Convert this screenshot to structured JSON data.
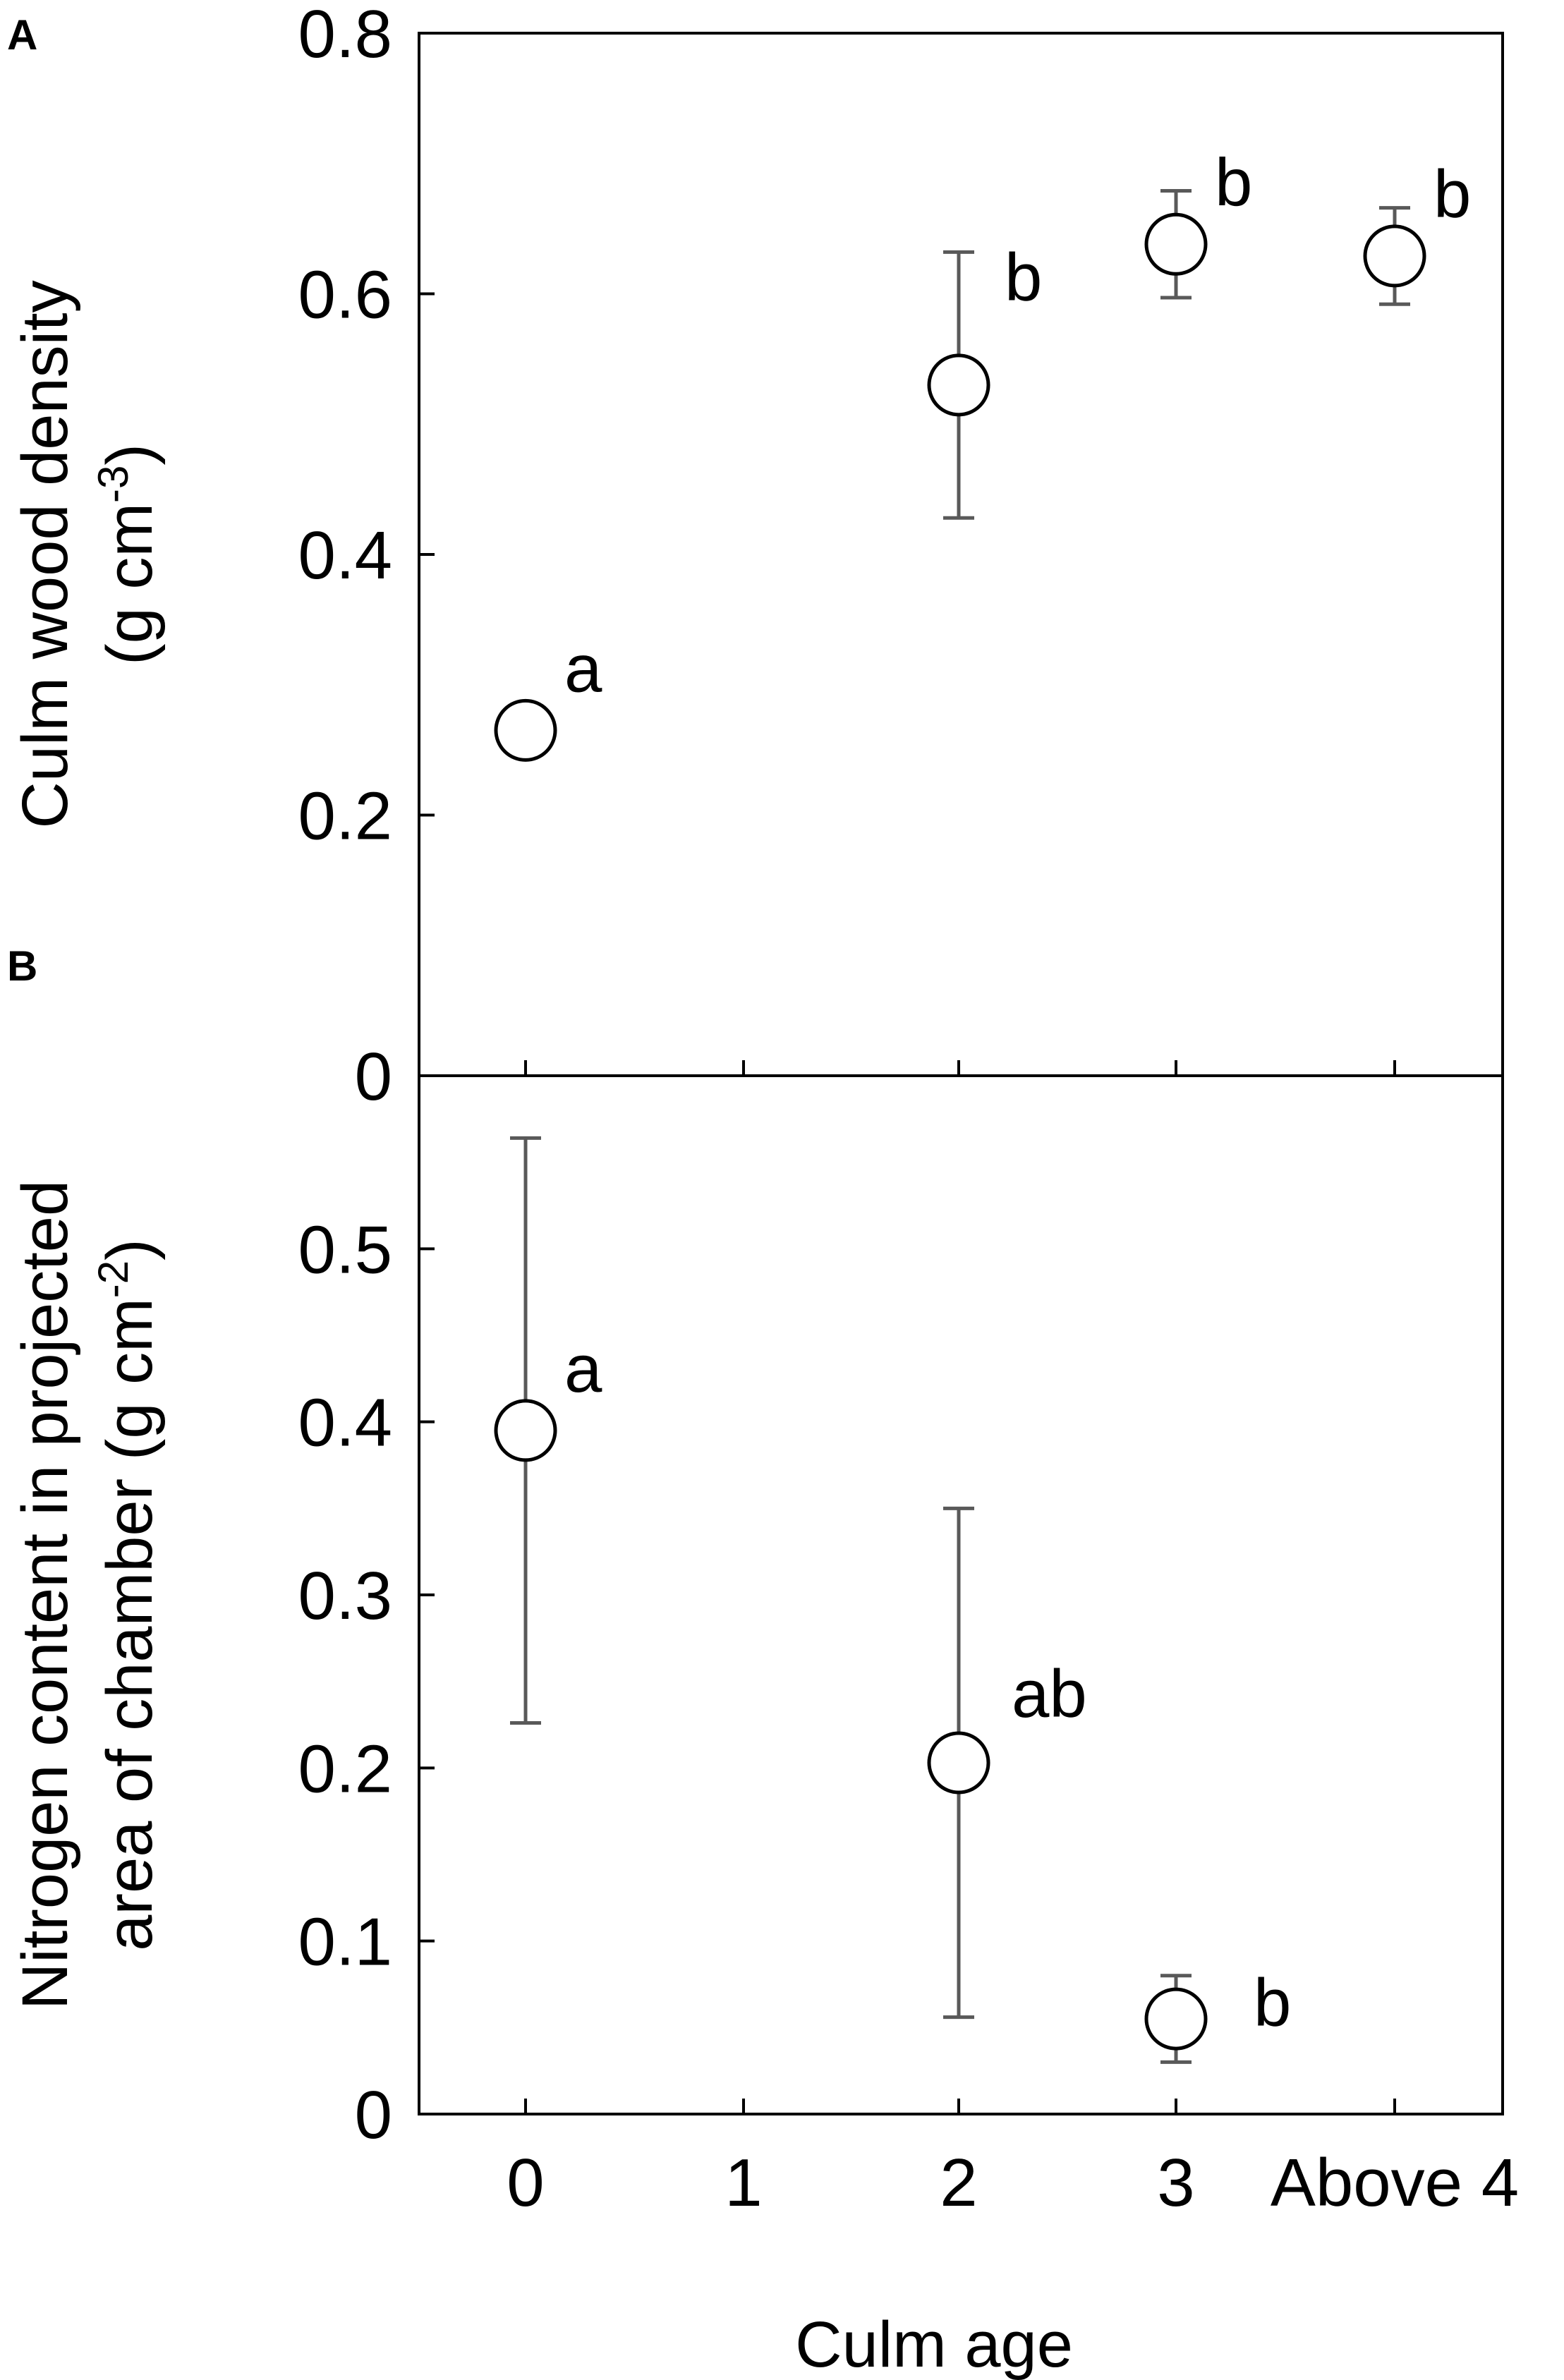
{
  "chart_data": [
    {
      "panel": "A",
      "type": "scatter",
      "xlabel": "",
      "ylabel_lines": [
        "Culm wood density",
        "(g cm",
        "-3",
        ")"
      ],
      "ylim": [
        0,
        0.8
      ],
      "yticks": [
        "0",
        "0.2",
        "0.4",
        "0.6",
        "0.8"
      ],
      "ytick_values": [
        0,
        0.2,
        0.4,
        0.6,
        0.8
      ],
      "categories": [
        "0",
        "1",
        "2",
        "3",
        "Above 4"
      ],
      "points": [
        {
          "category": "0",
          "y": 0.265,
          "err_low": 0.265,
          "err_high": 0.265,
          "label": "a"
        },
        {
          "category": "2",
          "y": 0.53,
          "err_low": 0.428,
          "err_high": 0.632,
          "label": "b"
        },
        {
          "category": "3",
          "y": 0.638,
          "err_low": 0.597,
          "err_high": 0.679,
          "label": "b"
        },
        {
          "category": "Above 4",
          "y": 0.629,
          "err_low": 0.592,
          "err_high": 0.666,
          "label": "b"
        }
      ],
      "grid": false
    },
    {
      "panel": "B",
      "type": "scatter",
      "xlabel": "Culm age",
      "ylabel_lines": [
        "Nitrogen content in projected",
        "area of chamber (g cm",
        "-2",
        ")"
      ],
      "ylim": [
        0,
        0.6
      ],
      "yticks": [
        "0",
        "0.1",
        "0.2",
        "0.3",
        "0.4",
        "0.5"
      ],
      "ytick_values": [
        0,
        0.1,
        0.2,
        0.3,
        0.4,
        0.5
      ],
      "categories": [
        "0",
        "1",
        "2",
        "3",
        "Above 4"
      ],
      "points": [
        {
          "category": "0",
          "y": 0.395,
          "err_low": 0.226,
          "err_high": 0.564,
          "label": "a"
        },
        {
          "category": "2",
          "y": 0.203,
          "err_low": 0.056,
          "err_high": 0.35,
          "label": "ab"
        },
        {
          "category": "3",
          "y": 0.055,
          "err_low": 0.03,
          "err_high": 0.08,
          "label": "b"
        }
      ],
      "grid": false
    }
  ],
  "colors": {
    "axis": "#000000",
    "errorbar": "#595959",
    "marker_stroke": "#000000",
    "marker_fill": "#ffffff"
  }
}
